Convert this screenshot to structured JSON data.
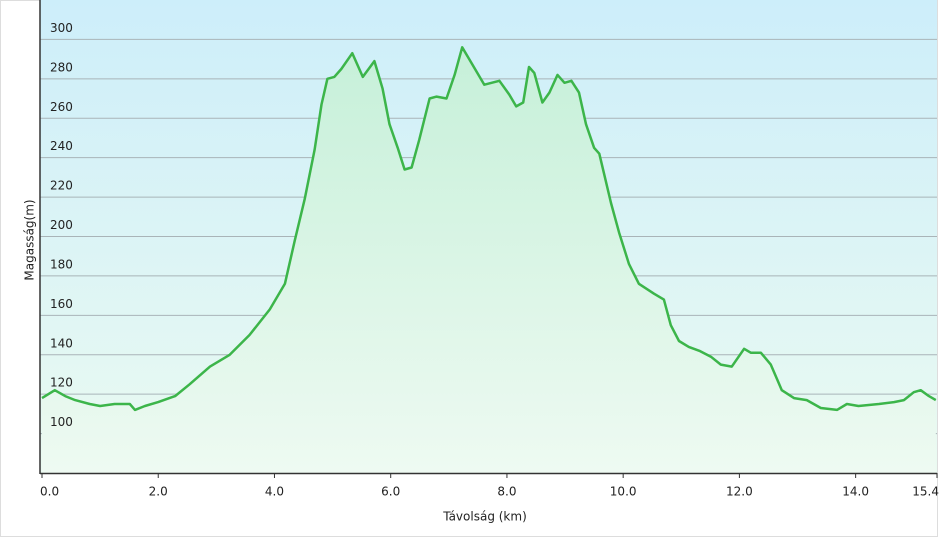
{
  "chart_data": {
    "type": "area",
    "xlabel": "Távolság (km)",
    "ylabel": "Magasság(m)",
    "x": [
      0,
      0.22,
      0.4,
      0.57,
      0.82,
      1.0,
      1.25,
      1.51,
      1.6,
      1.77,
      2.0,
      2.29,
      2.54,
      2.89,
      3.23,
      3.57,
      3.92,
      4.18,
      4.35,
      4.52,
      4.69,
      4.81,
      4.91,
      5.03,
      5.15,
      5.34,
      5.52,
      5.72,
      5.86,
      5.98,
      6.12,
      6.24,
      6.36,
      6.49,
      6.67,
      6.79,
      6.96,
      7.1,
      7.23,
      7.35,
      7.61,
      7.87,
      8.04,
      8.16,
      8.28,
      8.38,
      8.47,
      8.61,
      8.73,
      8.87,
      8.99,
      9.11,
      9.24,
      9.36,
      9.5,
      9.59,
      9.67,
      9.79,
      9.93,
      10.1,
      10.27,
      10.53,
      10.7,
      10.82,
      10.96,
      11.13,
      11.31,
      11.51,
      11.68,
      11.87,
      12.08,
      12.2,
      12.37,
      12.54,
      12.73,
      12.94,
      13.16,
      13.4,
      13.68,
      13.85,
      14.05,
      14.4,
      14.66,
      14.83,
      15.0,
      15.12,
      15.26,
      15.38
    ],
    "values": [
      118,
      122,
      119,
      117,
      115,
      114,
      115,
      115,
      112,
      114,
      116,
      119,
      125,
      134,
      140,
      150,
      163,
      176,
      198,
      219,
      244,
      267,
      280,
      281,
      285,
      293,
      281,
      289,
      275,
      257,
      245,
      234,
      235,
      249,
      270,
      271,
      270,
      282,
      296,
      290,
      277,
      279,
      272,
      266,
      268,
      286,
      283,
      268,
      273,
      282,
      278,
      279,
      273,
      257,
      245,
      242,
      232,
      217,
      202,
      186,
      176,
      171,
      168,
      155,
      147,
      144,
      142,
      139,
      135,
      134,
      143,
      141,
      141,
      135,
      122,
      118,
      117,
      113,
      112,
      115,
      114,
      115,
      116,
      117,
      121,
      122,
      119,
      117
    ],
    "color": "#3cb54a",
    "xlim": [
      0,
      15.4
    ],
    "xticks": [
      {
        "value": 0,
        "label": "0.0"
      },
      {
        "value": 2,
        "label": "2.0"
      },
      {
        "value": 4,
        "label": "4.0"
      },
      {
        "value": 6,
        "label": "6.0"
      },
      {
        "value": 8,
        "label": "8.0"
      },
      {
        "value": 10,
        "label": "10.0"
      },
      {
        "value": 12,
        "label": "12.0"
      },
      {
        "value": 14,
        "label": "14.0"
      },
      {
        "value": 15.4,
        "label": "15.4"
      }
    ],
    "ylim": [
      80,
      320
    ],
    "yticks": [
      100,
      120,
      140,
      160,
      180,
      200,
      220,
      240,
      260,
      280,
      300
    ],
    "grid": true
  }
}
